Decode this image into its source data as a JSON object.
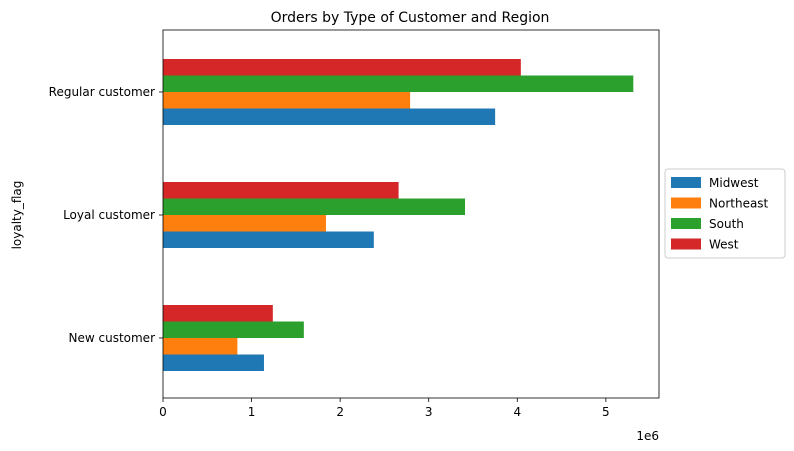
{
  "chart_data": {
    "type": "bar",
    "orientation": "horizontal",
    "title": "Orders by Type of Customer and Region",
    "xlabel": "",
    "ylabel": "loyalty_flag",
    "x_offset_label": "1e6",
    "categories": [
      "New customer",
      "Loyal customer",
      "Regular customer"
    ],
    "x_ticks": [
      0,
      1,
      2,
      3,
      4,
      5
    ],
    "xlim": [
      0,
      5.6
    ],
    "grid": false,
    "legend_position": "center-right-outside",
    "series": [
      {
        "name": "Midwest",
        "color": "#1f77b4",
        "values": [
          1.14,
          2.38,
          3.75
        ]
      },
      {
        "name": "Northeast",
        "color": "#ff7f0e",
        "values": [
          0.84,
          1.84,
          2.79
        ]
      },
      {
        "name": "South",
        "color": "#2ca02c",
        "values": [
          1.59,
          3.41,
          5.31
        ]
      },
      {
        "name": "West",
        "color": "#d62728",
        "values": [
          1.24,
          2.66,
          4.04
        ]
      }
    ]
  }
}
